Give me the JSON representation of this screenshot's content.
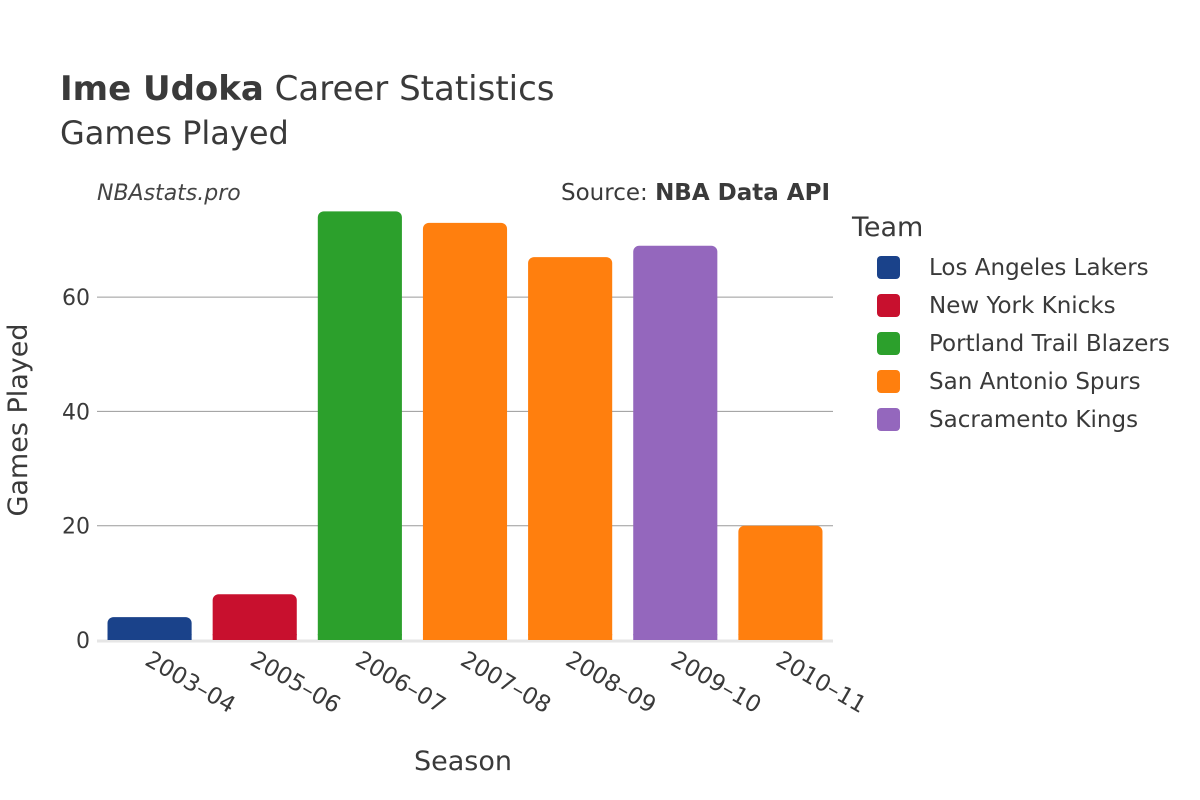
{
  "header": {
    "title_bold": "Ime Udoka",
    "title_rest": " Career Statistics",
    "subtitle": "Games Played",
    "watermark": "NBAstats.pro",
    "source_prefix": "Source: ",
    "source_name": "NBA Data API"
  },
  "legend": {
    "title": "Team",
    "items": [
      {
        "label": "Los Angeles Lakers",
        "color": "#1a428a"
      },
      {
        "label": "New York Knicks",
        "color": "#c8102e"
      },
      {
        "label": "Portland Trail Blazers",
        "color": "#2ca02c"
      },
      {
        "label": "San Antonio Spurs",
        "color": "#ff7f0e"
      },
      {
        "label": "Sacramento Kings",
        "color": "#9467bd"
      }
    ]
  },
  "chart_data": {
    "type": "bar",
    "xlabel": "Season",
    "ylabel": "Games Played",
    "ylim": [
      0,
      77
    ],
    "yticks": [
      0,
      20,
      40,
      60
    ],
    "grid": true,
    "legend_position": "right",
    "categories": [
      "2003–04",
      "2005–06",
      "2006–07",
      "2007–08",
      "2008–09",
      "2009–10",
      "2010–11"
    ],
    "values": [
      4,
      8,
      75,
      73,
      67,
      69,
      20
    ],
    "bar_teams": [
      "Los Angeles Lakers",
      "New York Knicks",
      "Portland Trail Blazers",
      "San Antonio Spurs",
      "San Antonio Spurs",
      "Sacramento Kings",
      "San Antonio Spurs"
    ]
  }
}
